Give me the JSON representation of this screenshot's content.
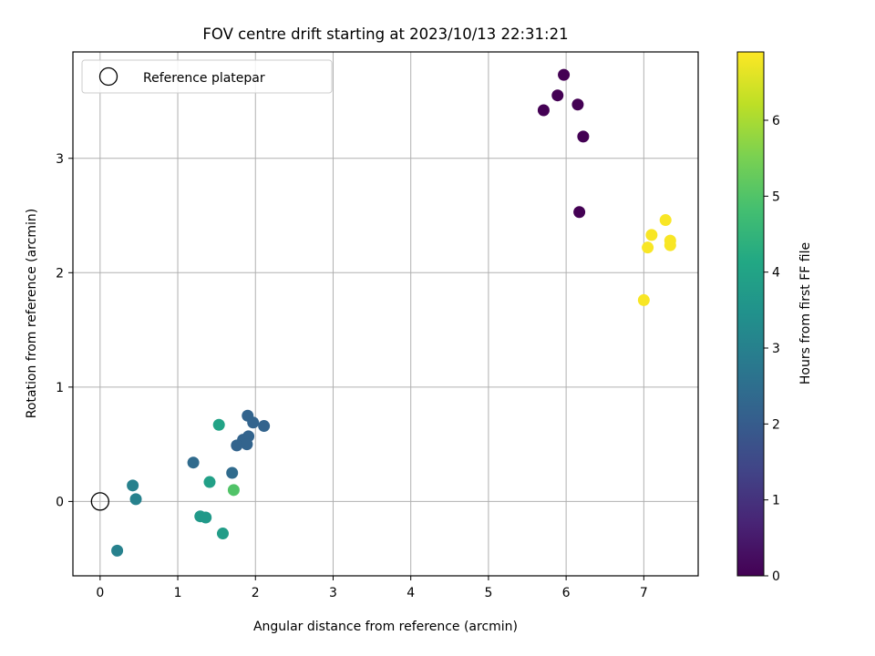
{
  "chart_data": {
    "type": "scatter",
    "title": "FOV centre drift starting at 2023/10/13 22:31:21",
    "xlabel": "Angular distance from reference (arcmin)",
    "ylabel": "Rotation from reference (arcmin)",
    "xlim": [
      -0.35,
      7.7
    ],
    "ylim": [
      -0.65,
      3.93
    ],
    "x_ticks": [
      0,
      1,
      2,
      3,
      4,
      5,
      6,
      7
    ],
    "y_ticks": [
      0,
      1,
      2,
      3
    ],
    "grid": true,
    "legend": {
      "position": "top-left",
      "entries": [
        "Reference platepar"
      ]
    },
    "reference_point": {
      "name": "Reference platepar",
      "x": 0,
      "y": 0
    },
    "colorbar": {
      "label": "Hours from first FF file",
      "colormap": "viridis",
      "range": [
        0,
        6.9
      ],
      "ticks": [
        0,
        1,
        2,
        3,
        4,
        5,
        6
      ]
    },
    "points": [
      {
        "x": 5.97,
        "y": 3.73,
        "c": 0.0
      },
      {
        "x": 5.89,
        "y": 3.55,
        "c": 0.0
      },
      {
        "x": 5.71,
        "y": 3.42,
        "c": 0.0
      },
      {
        "x": 6.15,
        "y": 3.47,
        "c": 0.0
      },
      {
        "x": 6.22,
        "y": 3.19,
        "c": 0.0
      },
      {
        "x": 6.17,
        "y": 2.53,
        "c": 0.0
      },
      {
        "x": 7.28,
        "y": 2.46,
        "c": 6.85
      },
      {
        "x": 7.1,
        "y": 2.33,
        "c": 6.85
      },
      {
        "x": 7.34,
        "y": 2.28,
        "c": 6.85
      },
      {
        "x": 7.34,
        "y": 2.24,
        "c": 6.85
      },
      {
        "x": 7.05,
        "y": 2.22,
        "c": 6.85
      },
      {
        "x": 7.0,
        "y": 1.76,
        "c": 6.85
      },
      {
        "x": 1.9,
        "y": 0.75,
        "c": 2.2
      },
      {
        "x": 1.97,
        "y": 0.69,
        "c": 2.2
      },
      {
        "x": 2.11,
        "y": 0.66,
        "c": 2.2
      },
      {
        "x": 1.91,
        "y": 0.57,
        "c": 2.2
      },
      {
        "x": 1.84,
        "y": 0.54,
        "c": 2.2
      },
      {
        "x": 1.76,
        "y": 0.49,
        "c": 2.2
      },
      {
        "x": 1.89,
        "y": 0.5,
        "c": 2.2
      },
      {
        "x": 1.2,
        "y": 0.34,
        "c": 2.4
      },
      {
        "x": 1.7,
        "y": 0.25,
        "c": 2.4
      },
      {
        "x": 1.53,
        "y": 0.67,
        "c": 4.0
      },
      {
        "x": 1.41,
        "y": 0.17,
        "c": 3.9
      },
      {
        "x": 1.72,
        "y": 0.1,
        "c": 5.0
      },
      {
        "x": 0.42,
        "y": 0.14,
        "c": 3.0
      },
      {
        "x": 0.46,
        "y": 0.02,
        "c": 3.0
      },
      {
        "x": 1.29,
        "y": -0.13,
        "c": 3.7
      },
      {
        "x": 1.36,
        "y": -0.14,
        "c": 3.7
      },
      {
        "x": 1.58,
        "y": -0.28,
        "c": 3.8
      },
      {
        "x": 0.22,
        "y": -0.43,
        "c": 3.0
      }
    ]
  }
}
